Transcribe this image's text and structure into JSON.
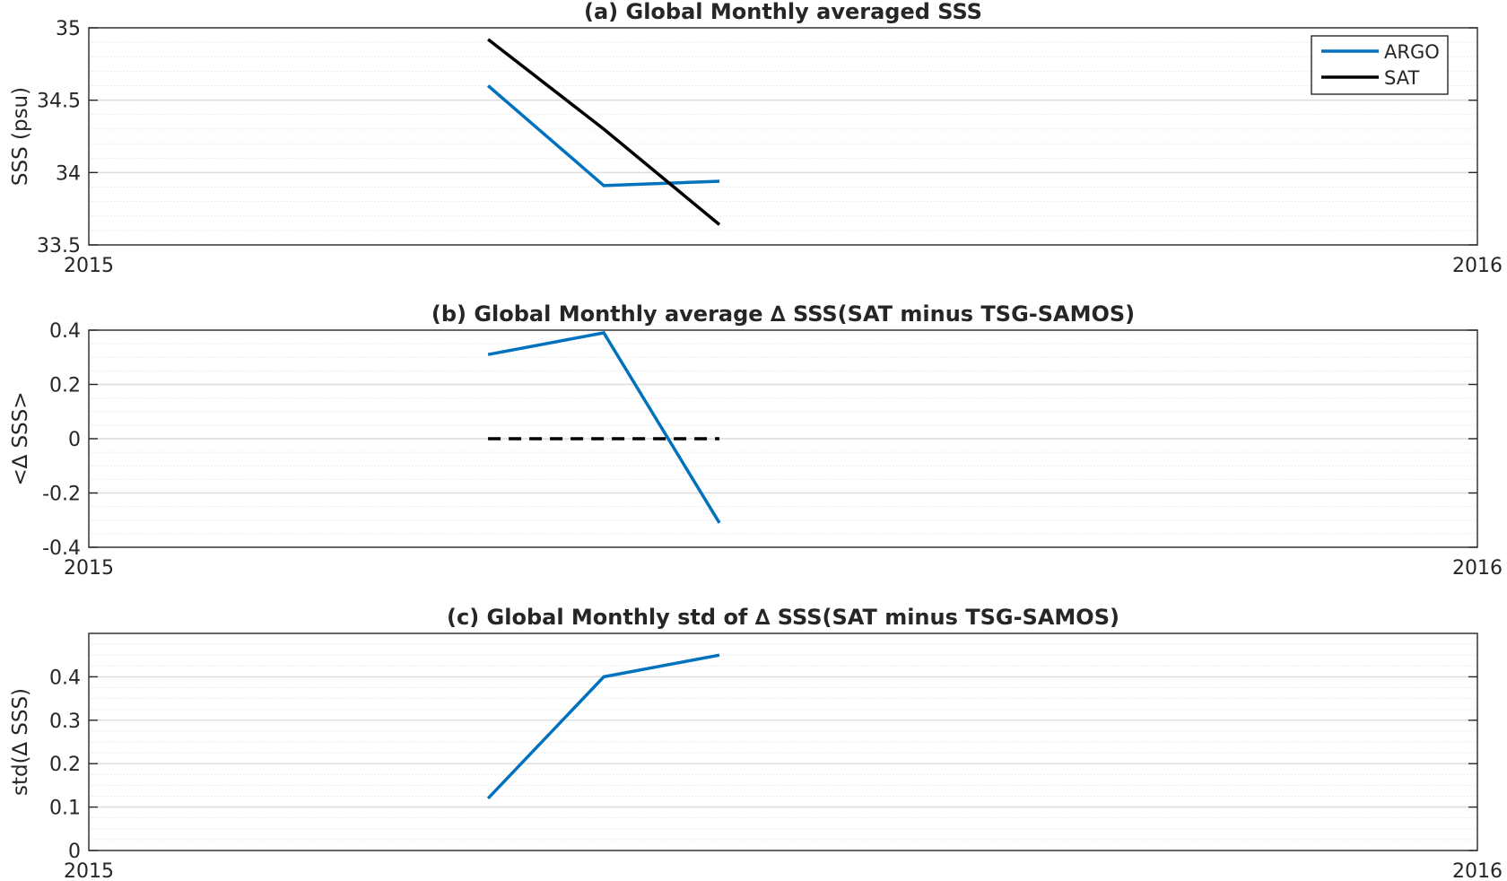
{
  "chart_data": [
    {
      "type": "line",
      "title": "(a) Global Monthly averaged SSS",
      "ylabel": "SSS (psu)",
      "xlim": [
        0,
        12
      ],
      "ylim": [
        33.5,
        35
      ],
      "x_tick_labels": [
        "2015",
        "2016"
      ],
      "y_ticks": [
        33.5,
        34,
        34.5,
        35
      ],
      "y_tick_labels": [
        "33.5",
        "34",
        "34.5",
        "35"
      ],
      "y_minor_step": 0.1,
      "grid": true,
      "legend": "top-right",
      "x": [
        3.45,
        4.45,
        5.45
      ],
      "series": [
        {
          "name": "ARGO",
          "color": "#0072bd",
          "values": [
            34.6,
            33.91,
            33.94
          ]
        },
        {
          "name": "SAT",
          "color": "#000000",
          "values": [
            34.92,
            34.3,
            33.64
          ]
        }
      ]
    },
    {
      "type": "line",
      "title": "(b) Global Monthly average ∆ SSS(SAT minus TSG-SAMOS)",
      "ylabel": "<∆ SSS>",
      "xlim": [
        0,
        12
      ],
      "ylim": [
        -0.4,
        0.4
      ],
      "x_tick_labels": [
        "2015",
        "2016"
      ],
      "y_ticks": [
        -0.4,
        -0.2,
        0,
        0.2,
        0.4
      ],
      "y_tick_labels": [
        "-0.4",
        "-0.2",
        "0",
        "0.2",
        "0.4"
      ],
      "y_minor_step": 0.05,
      "grid": true,
      "x": [
        3.45,
        4.45,
        5.45
      ],
      "series": [
        {
          "color": "#0072bd",
          "values": [
            0.31,
            0.39,
            -0.31
          ]
        },
        {
          "color": "#000000",
          "dashed": true,
          "values": [
            0,
            0,
            0
          ]
        }
      ]
    },
    {
      "type": "line",
      "title": "(c) Global Monthly std of ∆ SSS(SAT minus TSG-SAMOS)",
      "ylabel": "std(∆ SSS)",
      "xlim": [
        0,
        12
      ],
      "ylim": [
        0,
        0.5
      ],
      "x_tick_labels": [
        "2015",
        "2016"
      ],
      "y_ticks": [
        0,
        0.1,
        0.2,
        0.3,
        0.4
      ],
      "y_tick_labels": [
        "0",
        "0.1",
        "0.2",
        "0.3",
        "0.4"
      ],
      "y_minor_step": 0.025,
      "grid": true,
      "x": [
        3.45,
        4.45,
        5.45
      ],
      "series": [
        {
          "color": "#0072bd",
          "values": [
            0.12,
            0.4,
            0.45
          ]
        }
      ]
    }
  ]
}
